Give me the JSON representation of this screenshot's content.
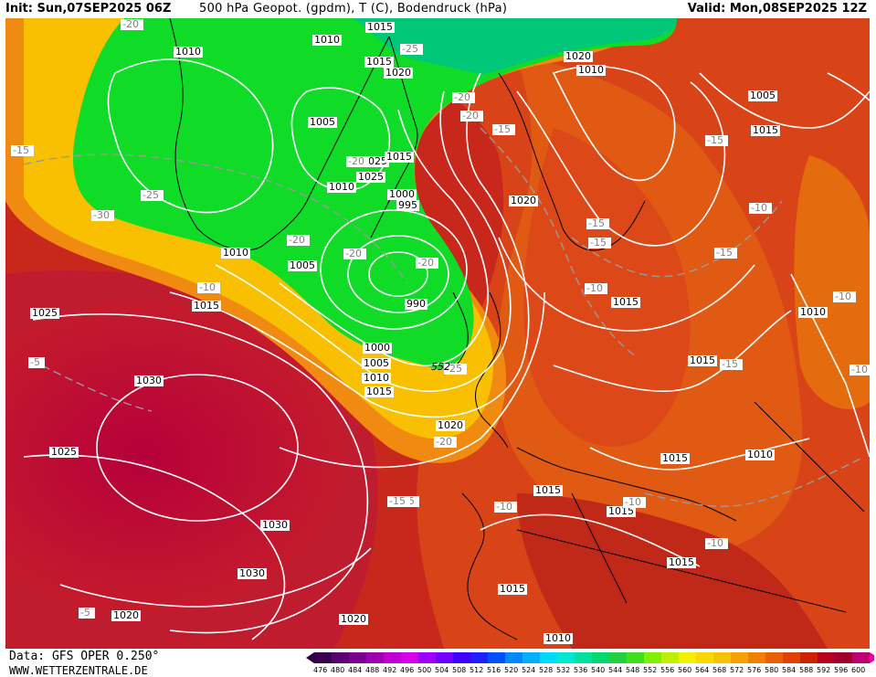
{
  "header": {
    "init": "Init: Sun,07SEP2025 06Z",
    "title": "500 hPa Geopot. (gpdm), T (C), Bodendruck (hPa)",
    "valid": "Valid: Mon,08SEP2025 12Z"
  },
  "footer": {
    "source": "Data: GFS OPER 0.250°",
    "site": "WWW.WETTERZENTRALE.DE"
  },
  "legend": {
    "ticks": [
      "476",
      "480",
      "484",
      "488",
      "492",
      "496",
      "500",
      "504",
      "508",
      "512",
      "516",
      "520",
      "524",
      "528",
      "532",
      "536",
      "540",
      "544",
      "548",
      "552",
      "556",
      "560",
      "564",
      "568",
      "572",
      "576",
      "580",
      "584",
      "588",
      "592",
      "596",
      "600"
    ],
    "colors": [
      "#3a0050",
      "#5a0070",
      "#7a0090",
      "#9c00b0",
      "#c000d0",
      "#d800e8",
      "#a000ff",
      "#7000ff",
      "#4000ff",
      "#2020ff",
      "#0050ff",
      "#0088ff",
      "#00b0ff",
      "#00d8ff",
      "#00e8d0",
      "#00e0a0",
      "#00d870",
      "#20d040",
      "#40e020",
      "#80f000",
      "#c0f000",
      "#f0f000",
      "#f8d800",
      "#f8c000",
      "#f8a000",
      "#f08000",
      "#e86000",
      "#e04000",
      "#d02000",
      "#b80020",
      "#a00030",
      "#c00070"
    ]
  },
  "isobar_labels": [
    "1015",
    "1010",
    "1010",
    "1015",
    "1020",
    "1025",
    "1005",
    "1025",
    "1015",
    "1010",
    "1000",
    "995",
    "990",
    "1010",
    "1005",
    "1000",
    "1005",
    "1010",
    "1015",
    "1020",
    "1030",
    "1020",
    "1010",
    "1005",
    "1015",
    "1025",
    "1030",
    "1025",
    "1030",
    "1025",
    "1020",
    "1020",
    "1015",
    "1015",
    "1015",
    "1015",
    "1010",
    "1015",
    "1015",
    "1015",
    "1010",
    "1010",
    "1020",
    "1015"
  ],
  "temp_labels": [
    "-20",
    "-25",
    "-20",
    "-15",
    "-25",
    "-30",
    "-20",
    "-20",
    "-20",
    "-10",
    "-5",
    "-15",
    "-15",
    "-20",
    "-25",
    "-20",
    "-15",
    "-15",
    "-10",
    "-10",
    "-15",
    "-15",
    "-10",
    "-10",
    "-15",
    "-10",
    "-10",
    "-5",
    "-15",
    "-20",
    "-10"
  ],
  "contour_value_label": "552"
}
